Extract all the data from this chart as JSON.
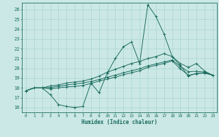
{
  "xlabel": "Humidex (Indice chaleur)",
  "xlim": [
    -0.5,
    23.5
  ],
  "ylim": [
    15.5,
    26.7
  ],
  "xticks": [
    0,
    1,
    2,
    3,
    4,
    5,
    6,
    7,
    8,
    9,
    10,
    11,
    12,
    13,
    14,
    15,
    16,
    17,
    18,
    19,
    20,
    21,
    22,
    23
  ],
  "yticks": [
    16,
    17,
    18,
    19,
    20,
    21,
    22,
    23,
    24,
    25,
    26
  ],
  "bg_color": "#cbe8e6",
  "grid_color": "#a8d4d0",
  "line_color": "#1a6b5e",
  "jagged": [
    17.7,
    18.0,
    18.0,
    17.3,
    16.3,
    16.1,
    16.0,
    16.1,
    18.5,
    17.5,
    19.5,
    21.0,
    22.2,
    22.7,
    20.5,
    26.5,
    25.3,
    23.5,
    21.2,
    20.3,
    19.2,
    19.5,
    19.5,
    19.3
  ],
  "upper": [
    17.7,
    18.0,
    18.0,
    18.2,
    18.3,
    18.5,
    18.6,
    18.7,
    18.9,
    19.2,
    19.6,
    19.9,
    20.2,
    20.5,
    20.7,
    21.0,
    21.2,
    21.5,
    21.2,
    20.5,
    20.1,
    20.5,
    19.7,
    19.3
  ],
  "mid": [
    17.7,
    18.0,
    18.0,
    18.05,
    18.15,
    18.3,
    18.4,
    18.5,
    18.65,
    18.85,
    19.1,
    19.3,
    19.55,
    19.75,
    19.95,
    20.25,
    20.45,
    20.65,
    20.85,
    20.2,
    19.65,
    19.7,
    19.62,
    19.3
  ],
  "lower": [
    17.7,
    18.0,
    18.0,
    17.9,
    18.0,
    18.1,
    18.15,
    18.25,
    18.45,
    18.7,
    18.9,
    19.1,
    19.35,
    19.55,
    19.75,
    20.1,
    20.3,
    20.5,
    20.75,
    19.95,
    19.3,
    19.45,
    19.55,
    19.3
  ]
}
